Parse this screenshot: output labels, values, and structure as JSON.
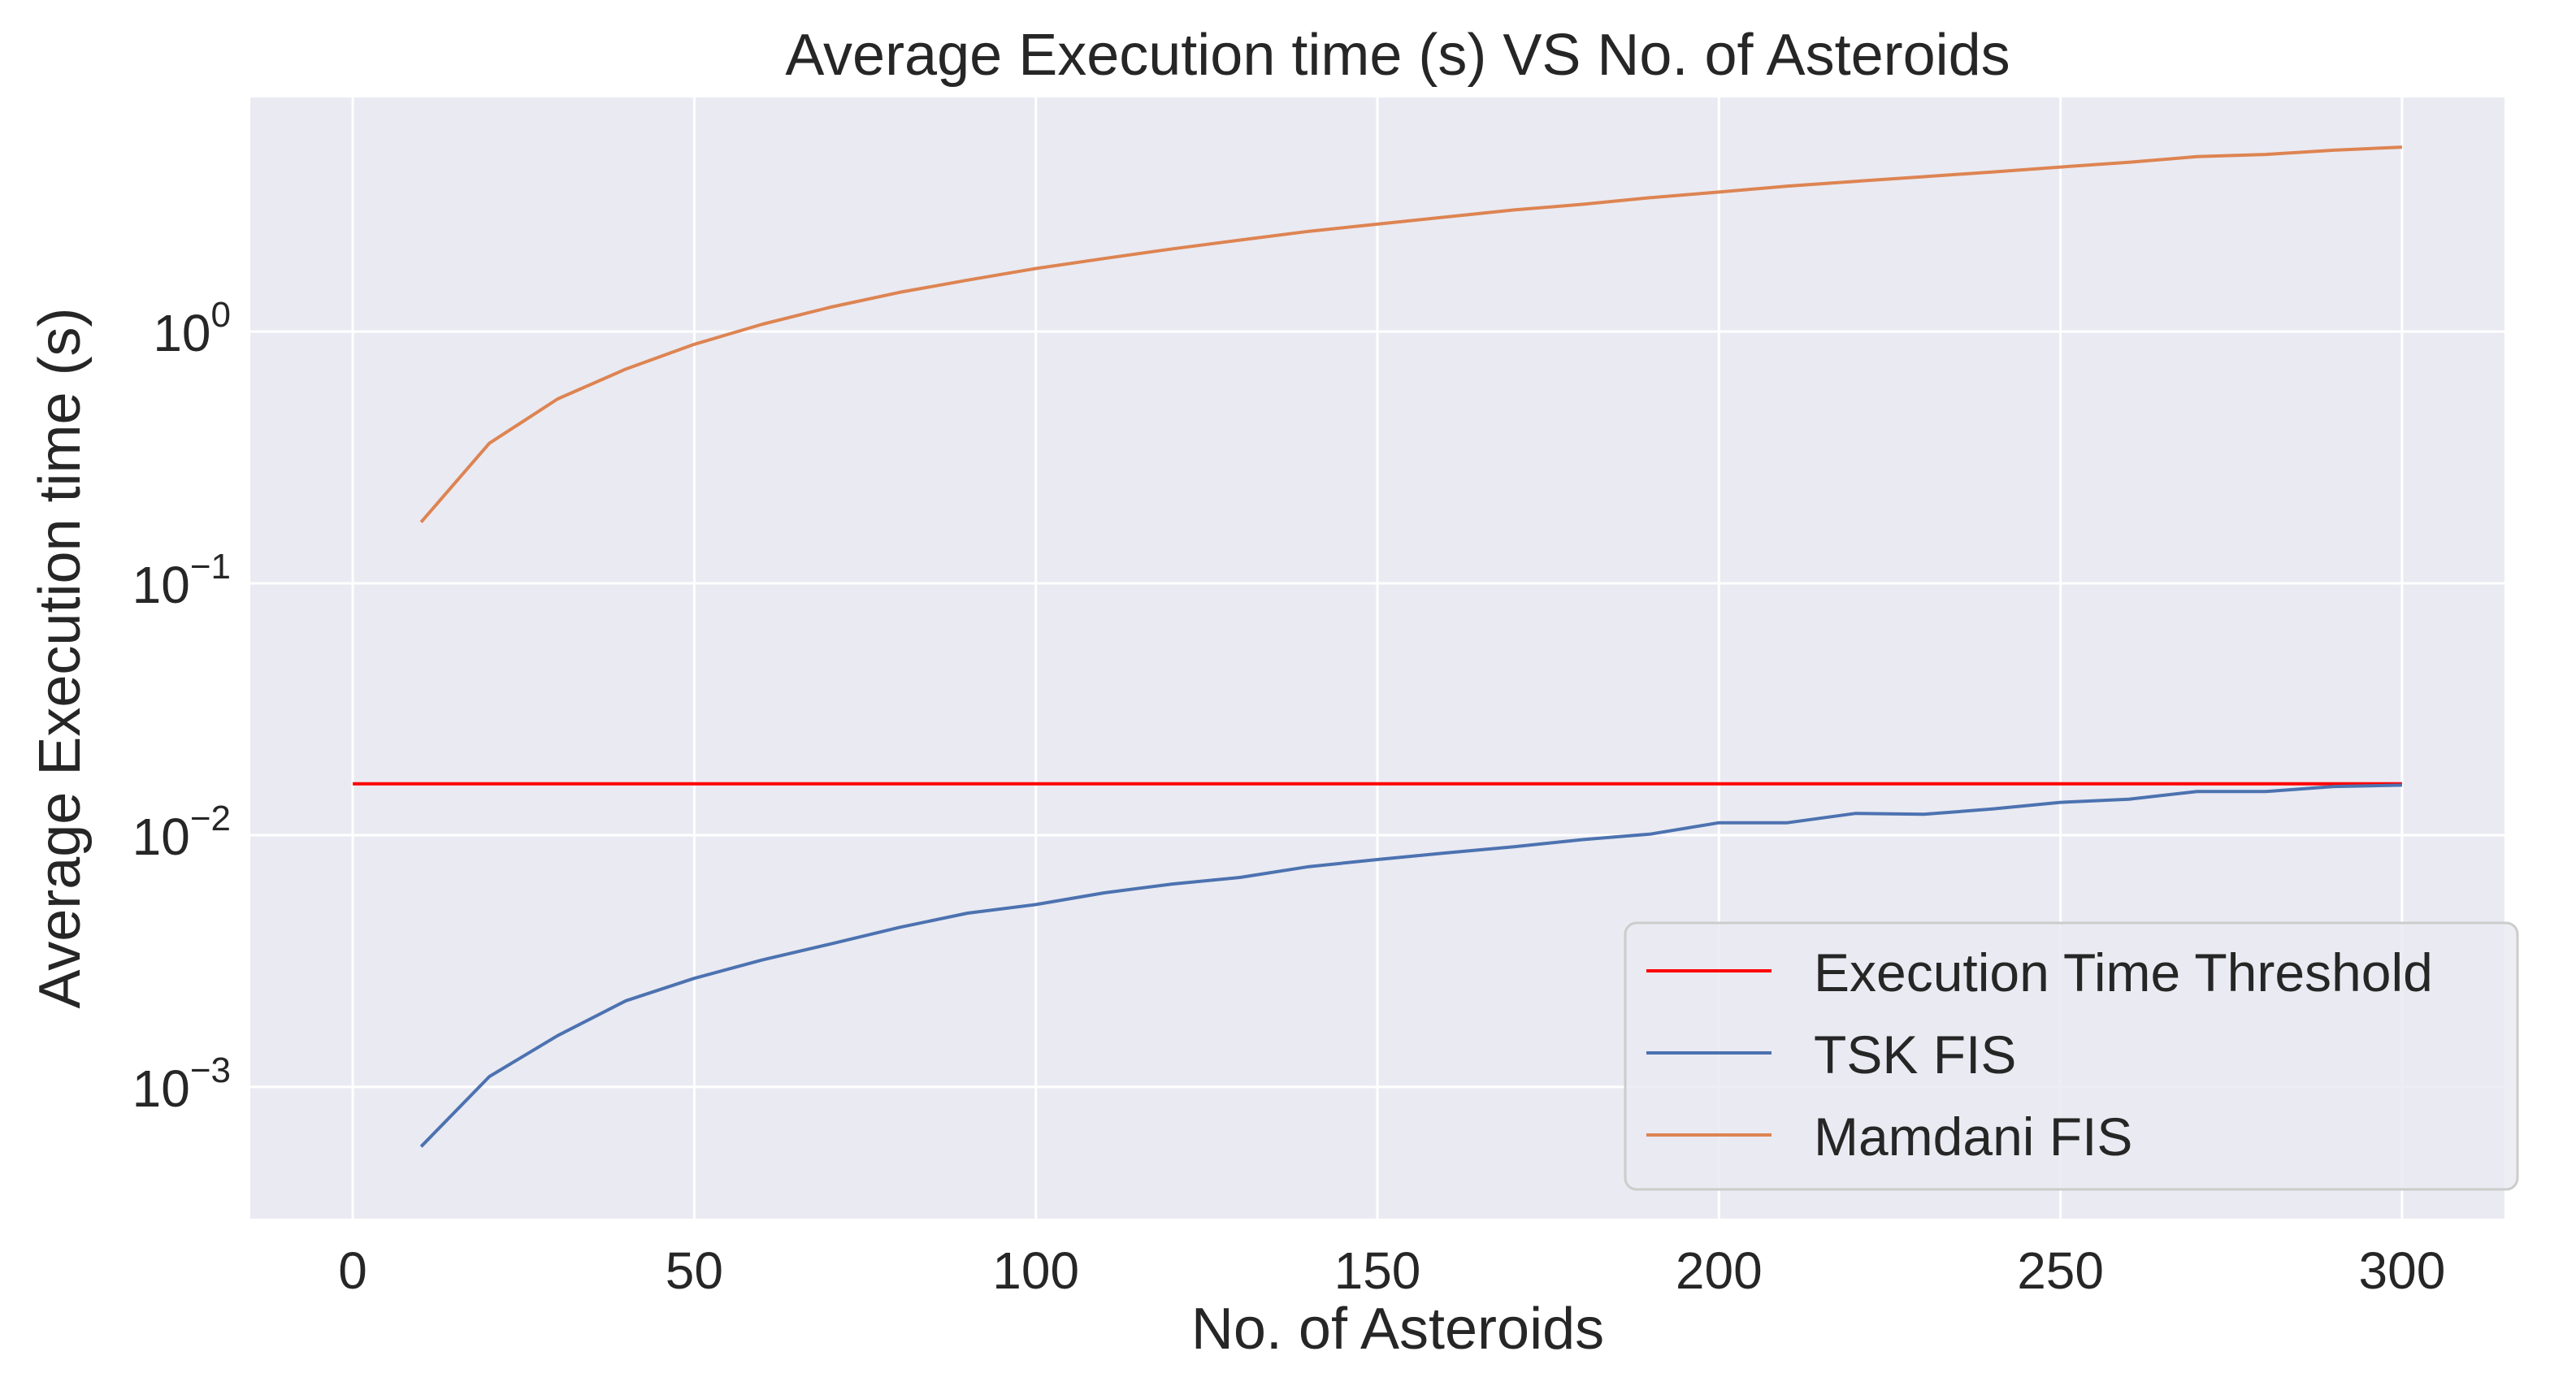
{
  "chart_data": {
    "type": "line",
    "title": "Average Execution time (s) VS No. of Asteroids",
    "xlabel": "No. of Asteroids",
    "ylabel": "Average Execution time (s)",
    "xlim": [
      -15,
      315
    ],
    "ylim": [
      0.0003,
      8.5
    ],
    "yscale": "log",
    "grid": true,
    "background": "#eaeaf2",
    "x_ticks": [
      0,
      50,
      100,
      150,
      200,
      250,
      300
    ],
    "y_ticks": [
      {
        "value": 0.001,
        "base": "10",
        "exp": "−3"
      },
      {
        "value": 0.01,
        "base": "10",
        "exp": "−2"
      },
      {
        "value": 0.1,
        "base": "10",
        "exp": "−1"
      },
      {
        "value": 1,
        "base": "10",
        "exp": "0"
      }
    ],
    "legend_position": "lower-right",
    "threshold": {
      "name": "Execution Time Threshold",
      "color": "#ff0000",
      "x": [
        0,
        300
      ],
      "values": [
        0.016,
        0.016
      ]
    },
    "series": [
      {
        "name": "TSK FIS",
        "color": "#4c72b0",
        "x": [
          10,
          20,
          30,
          40,
          50,
          60,
          70,
          80,
          90,
          100,
          110,
          120,
          130,
          140,
          150,
          160,
          170,
          180,
          190,
          200,
          210,
          220,
          230,
          240,
          250,
          260,
          270,
          280,
          290,
          300
        ],
        "values": [
          0.00058,
          0.0011,
          0.0016,
          0.0022,
          0.0027,
          0.0032,
          0.0037,
          0.0043,
          0.0049,
          0.0053,
          0.0059,
          0.0064,
          0.0068,
          0.0075,
          0.008,
          0.0085,
          0.009,
          0.0096,
          0.0101,
          0.0112,
          0.0112,
          0.0122,
          0.0121,
          0.0127,
          0.0135,
          0.0139,
          0.0149,
          0.0149,
          0.0156,
          0.0158
        ]
      },
      {
        "name": "Mamdani FIS",
        "color": "#dd8452",
        "x": [
          10,
          20,
          30,
          40,
          50,
          60,
          70,
          80,
          90,
          100,
          110,
          120,
          130,
          140,
          150,
          160,
          170,
          180,
          190,
          200,
          210,
          220,
          230,
          240,
          250,
          260,
          270,
          280,
          290,
          300
        ],
        "values": [
          0.175,
          0.36,
          0.54,
          0.71,
          0.89,
          1.07,
          1.25,
          1.43,
          1.6,
          1.78,
          1.95,
          2.13,
          2.31,
          2.5,
          2.67,
          2.85,
          3.04,
          3.2,
          3.4,
          3.58,
          3.78,
          3.95,
          4.12,
          4.3,
          4.5,
          4.7,
          4.95,
          5.05,
          5.25,
          5.4
        ]
      }
    ]
  }
}
